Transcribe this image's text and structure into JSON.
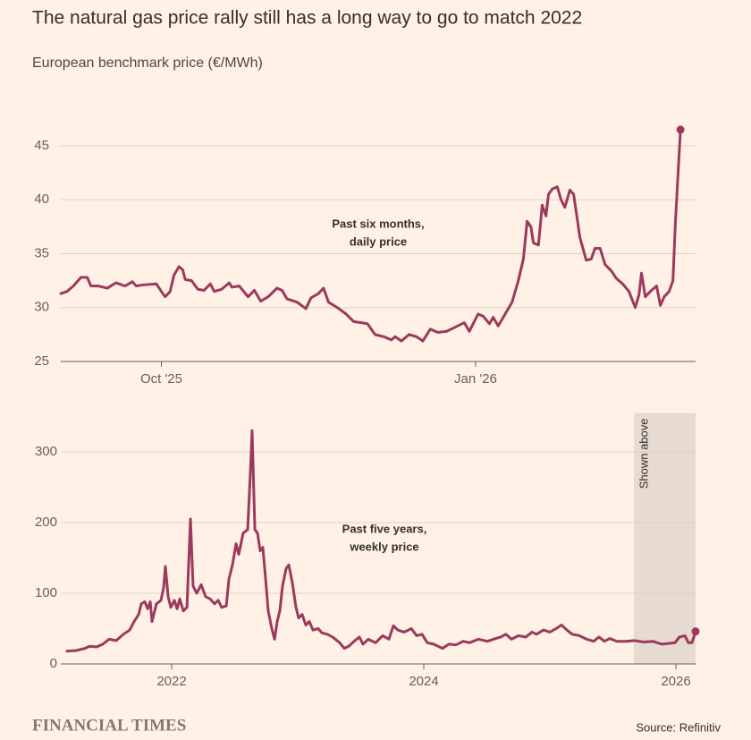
{
  "title": "The natural gas price rally still has a long way to go to match 2022",
  "subtitle": "European benchmark price (€/MWh)",
  "footer": {
    "brand": "FINANCIAL TIMES",
    "source": "Source: Refinitiv"
  },
  "chart_data": [
    {
      "type": "line",
      "color": "#9b3a5c",
      "grid": true,
      "end_marker": true,
      "annotation": [
        "Past six months,",
        "daily price"
      ],
      "xlim": [
        2025.67,
        2026.175
      ],
      "ylim": [
        25,
        47
      ],
      "xticks": [
        {
          "value": 2025.75,
          "label": "Oct '25"
        },
        {
          "value": 2026,
          "label": "Jan '26"
        }
      ],
      "yticks": [
        25,
        30,
        35,
        40,
        45
      ],
      "x": [
        2025.67,
        2025.675,
        2025.68,
        2025.686,
        2025.691,
        2025.694,
        2025.7,
        2025.707,
        2025.714,
        2025.721,
        2025.727,
        2025.73,
        2025.735,
        2025.746,
        2025.75,
        2025.753,
        2025.757,
        2025.76,
        2025.764,
        2025.767,
        2025.769,
        2025.774,
        2025.779,
        2025.784,
        2025.789,
        2025.792,
        2025.798,
        2025.804,
        2025.806,
        2025.812,
        2025.819,
        2025.824,
        2025.829,
        2025.835,
        2025.842,
        2025.846,
        2025.85,
        2025.858,
        2025.865,
        2025.869,
        2025.875,
        2025.879,
        2025.883,
        2025.89,
        2025.897,
        2025.903,
        2025.909,
        2025.914,
        2025.92,
        2025.927,
        2025.933,
        2025.936,
        2025.941,
        2025.947,
        2025.953,
        2025.958,
        2025.964,
        2025.97,
        2025.977,
        2025.984,
        2025.991,
        2025.995,
        2026.002,
        2026.006,
        2026.011,
        2026.014,
        2026.018,
        2026.024,
        2026.029,
        2026.034,
        2026.038,
        2026.041,
        2026.044,
        2026.046,
        2026.05,
        2026.053,
        2026.056,
        2026.058,
        2026.061,
        2026.065,
        2026.068,
        2026.071,
        2026.075,
        2026.078,
        2026.083,
        2026.088,
        2026.092,
        2026.095,
        2026.099,
        2026.103,
        2026.108,
        2026.112,
        2026.117,
        2026.122,
        2026.127,
        2026.13,
        2026.132,
        2026.135,
        2026.139,
        2026.144,
        2026.147,
        2026.15,
        2026.154,
        2026.157,
        2026.159,
        2026.163
      ],
      "values": [
        31.3,
        31.5,
        32,
        32.8,
        32.8,
        32,
        32,
        31.8,
        32.3,
        32,
        32.4,
        32,
        32.1,
        32.2,
        31.5,
        31,
        31.5,
        33,
        33.8,
        33.5,
        32.6,
        32.5,
        31.7,
        31.6,
        32.2,
        31.5,
        31.7,
        32.3,
        31.9,
        32,
        31,
        31.6,
        30.6,
        31,
        31.8,
        31.6,
        30.8,
        30.5,
        29.9,
        30.9,
        31.3,
        31.8,
        30.5,
        30,
        29.4,
        28.7,
        28.6,
        28.5,
        27.5,
        27.3,
        27,
        27.3,
        26.9,
        27.5,
        27.3,
        26.9,
        28,
        27.7,
        27.8,
        28.2,
        28.6,
        27.8,
        29.4,
        29.2,
        28.5,
        29.1,
        28.3,
        29.5,
        30.5,
        32.5,
        34.5,
        38,
        37.5,
        36,
        35.8,
        39.5,
        38.5,
        40.5,
        41,
        41.2,
        40,
        39.3,
        40.9,
        40.5,
        36.5,
        34.4,
        34.5,
        35.5,
        35.5,
        34,
        33.4,
        32.7,
        32.2,
        31.5,
        30,
        31.2,
        33.2,
        31,
        31.5,
        32,
        30.2,
        31,
        31.5,
        32.5,
        38,
        46.5
      ]
    },
    {
      "type": "line",
      "color": "#9b3a5c",
      "grid": true,
      "end_marker": true,
      "annotation": [
        "Past five years,",
        "weekly price"
      ],
      "highlight": {
        "range": [
          2025.667,
          2026.156
        ],
        "label": "Shown above",
        "color": "#e7dad0"
      },
      "xlim": [
        2021.17,
        2026.156
      ],
      "ylim": [
        0,
        355
      ],
      "xticks": [
        2022,
        2024,
        2026
      ],
      "yticks": [
        0,
        100,
        200,
        300
      ],
      "x": [
        2021.17,
        2021.241,
        2021.312,
        2021.348,
        2021.404,
        2021.454,
        2021.504,
        2021.56,
        2021.617,
        2021.667,
        2021.702,
        2021.738,
        2021.759,
        2021.787,
        2021.809,
        2021.83,
        2021.844,
        2021.879,
        2021.915,
        2021.936,
        2021.95,
        2021.972,
        2021.993,
        2022.021,
        2022.043,
        2022.064,
        2022.092,
        2022.121,
        2022.149,
        2022.17,
        2022.199,
        2022.234,
        2022.27,
        2022.305,
        2022.34,
        2022.369,
        2022.397,
        2022.433,
        2022.454,
        2022.482,
        2022.511,
        2022.532,
        2022.567,
        2022.603,
        2022.624,
        2022.638,
        2022.66,
        2022.681,
        2022.702,
        2022.723,
        2022.745,
        2022.766,
        2022.794,
        2022.816,
        2022.837,
        2022.858,
        2022.879,
        2022.908,
        2022.929,
        2022.957,
        2022.986,
        2023.007,
        2023.035,
        2023.064,
        2023.092,
        2023.121,
        2023.163,
        2023.191,
        2023.234,
        2023.277,
        2023.333,
        2023.369,
        2023.404,
        2023.447,
        2023.489,
        2023.518,
        2023.56,
        2023.617,
        2023.674,
        2023.723,
        2023.759,
        2023.794,
        2023.844,
        2023.901,
        2023.943,
        2023.986,
        2024.028,
        2024.078,
        2024.149,
        2024.199,
        2024.255,
        2024.312,
        2024.362,
        2024.433,
        2024.504,
        2024.553,
        2024.61,
        2024.652,
        2024.695,
        2024.752,
        2024.809,
        2024.858,
        2024.894,
        2024.95,
        2025.0,
        2025.05,
        2025.092,
        2025.135,
        2025.177,
        2025.234,
        2025.291,
        2025.348,
        2025.39,
        2025.433,
        2025.475,
        2025.532,
        2025.603,
        2025.674,
        2025.745,
        2025.816,
        2025.887,
        2025.943,
        2025.993,
        2026.028,
        2026.071,
        2026.099,
        2026.128,
        2026.156
      ],
      "values": [
        18,
        19,
        22,
        25,
        24,
        28,
        35,
        33,
        42,
        48,
        60,
        70,
        85,
        88,
        78,
        88,
        60,
        85,
        90,
        108,
        138,
        95,
        80,
        90,
        78,
        92,
        75,
        80,
        205,
        110,
        100,
        112,
        95,
        92,
        85,
        90,
        80,
        82,
        120,
        140,
        170,
        155,
        185,
        190,
        270,
        330,
        190,
        185,
        160,
        165,
        120,
        75,
        50,
        35,
        60,
        75,
        110,
        135,
        140,
        115,
        80,
        65,
        70,
        55,
        60,
        48,
        50,
        44,
        42,
        38,
        30,
        22,
        25,
        32,
        38,
        28,
        35,
        30,
        40,
        35,
        54,
        48,
        45,
        50,
        40,
        42,
        30,
        28,
        22,
        28,
        27,
        32,
        30,
        35,
        32,
        35,
        38,
        42,
        35,
        40,
        38,
        45,
        42,
        48,
        45,
        50,
        55,
        48,
        42,
        40,
        35,
        32,
        38,
        32,
        36,
        32,
        32,
        33,
        31,
        32,
        28,
        29,
        30,
        38,
        40,
        30,
        30,
        46
      ]
    }
  ]
}
